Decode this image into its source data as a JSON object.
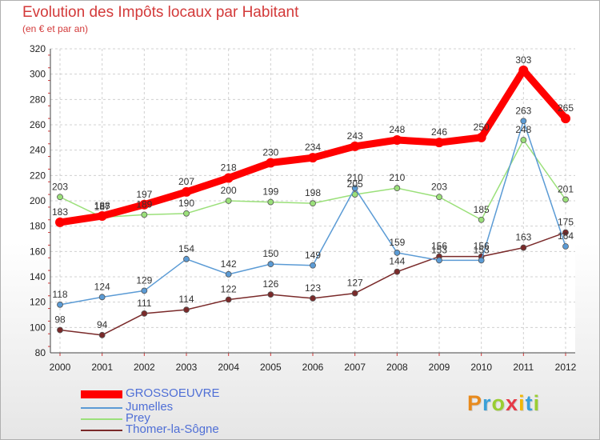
{
  "header": {
    "title": "Evolution des Impôts locaux par Habitant",
    "subtitle": "(en € et par an)"
  },
  "chart_data": {
    "type": "line",
    "title": "Evolution des Impôts locaux par Habitant",
    "subtitle": "(en € et par an)",
    "xlabel": "",
    "ylabel": "",
    "x": [
      2000,
      2001,
      2002,
      2003,
      2004,
      2005,
      2006,
      2007,
      2008,
      2009,
      2010,
      2011,
      2012
    ],
    "ylim": [
      80,
      320
    ],
    "yticks": [
      80,
      100,
      120,
      140,
      160,
      180,
      200,
      220,
      240,
      260,
      280,
      300,
      320
    ],
    "grid": true,
    "legend_position": "bottom-left",
    "series": [
      {
        "name": "GROSSOEUVRE",
        "color": "#ff0000",
        "values": [
          183,
          188,
          197,
          207,
          218,
          230,
          234,
          243,
          248,
          246,
          250,
          303,
          265
        ]
      },
      {
        "name": "Jumelles",
        "color": "#5b9bd5",
        "values": [
          118,
          124,
          129,
          154,
          142,
          150,
          149,
          210,
          159,
          153,
          153,
          263,
          164
        ]
      },
      {
        "name": "Prey",
        "color": "#9be07a",
        "values": [
          203,
          187,
          189,
          190,
          200,
          199,
          198,
          205,
          210,
          203,
          185,
          248,
          201
        ]
      },
      {
        "name": "Thomer-la-Sôgne",
        "color": "#7a2a2a",
        "values": [
          98,
          94,
          111,
          114,
          122,
          126,
          123,
          127,
          144,
          156,
          156,
          163,
          175
        ]
      }
    ]
  },
  "logo": {
    "letters": [
      "P",
      "r",
      "o",
      "x",
      "i",
      "t",
      "i"
    ],
    "colors": [
      "#e88a1c",
      "#3aa0d8",
      "#9acd32",
      "#e63946",
      "#f2b705",
      "#3aa0d8",
      "#9acd32"
    ]
  }
}
